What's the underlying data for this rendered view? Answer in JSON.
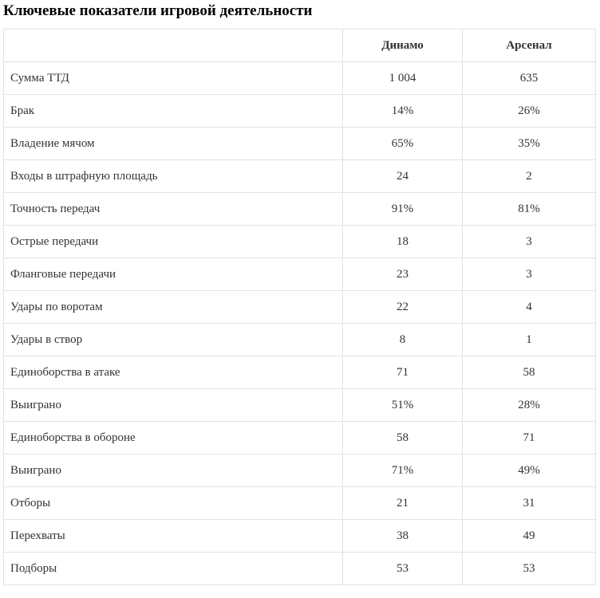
{
  "title": "Ключевые показатели игровой деятельности",
  "table": {
    "headers": [
      "",
      "Динамо",
      "Арсенал"
    ],
    "rows": [
      {
        "label": "Сумма ТТД",
        "dinamo": "1 004",
        "arsenal": "635"
      },
      {
        "label": "Брак",
        "dinamo": "14%",
        "arsenal": "26%"
      },
      {
        "label": "Владение мячом",
        "dinamo": "65%",
        "arsenal": "35%"
      },
      {
        "label": "Входы в штрафную площадь",
        "dinamo": "24",
        "arsenal": "2"
      },
      {
        "label": "Точность передач",
        "dinamo": "91%",
        "arsenal": "81%"
      },
      {
        "label": "Острые передачи",
        "dinamo": "18",
        "arsenal": "3"
      },
      {
        "label": "Фланговые передачи",
        "dinamo": "23",
        "arsenal": "3"
      },
      {
        "label": "Удары по воротам",
        "dinamo": "22",
        "arsenal": "4"
      },
      {
        "label": "Удары в створ",
        "dinamo": "8",
        "arsenal": "1"
      },
      {
        "label": "Единоборства в атаке",
        "dinamo": "71",
        "arsenal": "58"
      },
      {
        "label": "Выиграно",
        "dinamo": "51%",
        "arsenal": "28%"
      },
      {
        "label": "Единоборства в обороне",
        "dinamo": "58",
        "arsenal": "71"
      },
      {
        "label": "Выиграно",
        "dinamo": "71%",
        "arsenal": "49%"
      },
      {
        "label": "Отборы",
        "dinamo": "21",
        "arsenal": "31"
      },
      {
        "label": "Перехваты",
        "dinamo": "38",
        "arsenal": "49"
      },
      {
        "label": "Подборы",
        "dinamo": "53",
        "arsenal": "53"
      }
    ]
  }
}
